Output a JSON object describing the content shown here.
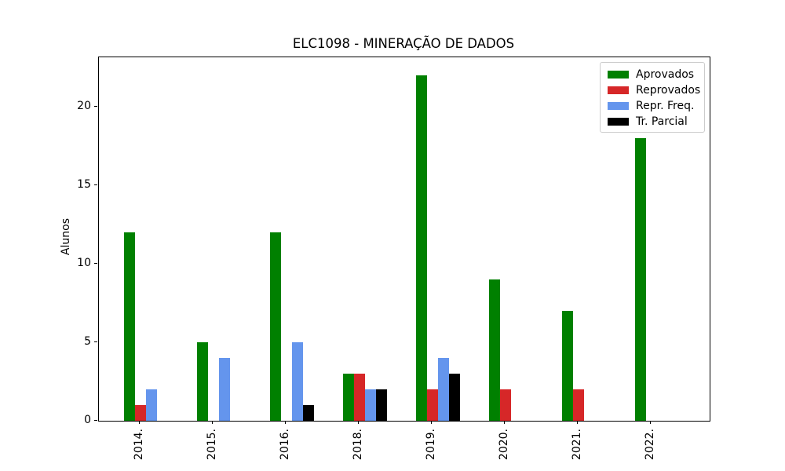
{
  "chart_data": {
    "type": "bar",
    "title": "ELC1098 - MINERAÇÃO DE DADOS",
    "xlabel": "",
    "ylabel": "Alunos",
    "categories": [
      "2014.",
      "2015.",
      "2016.",
      "2018.",
      "2019.",
      "2020.",
      "2021.",
      "2022."
    ],
    "series": [
      {
        "name": "Aprovados",
        "color": "#008000",
        "values": [
          12,
          5,
          12,
          3,
          22,
          9,
          7,
          18
        ]
      },
      {
        "name": "Reprovados",
        "color": "#d62728",
        "values": [
          1,
          0,
          0,
          3,
          2,
          2,
          2,
          0
        ]
      },
      {
        "name": "Repr. Freq.",
        "color": "#6495ed",
        "values": [
          2,
          4,
          5,
          2,
          4,
          0,
          0,
          0
        ]
      },
      {
        "name": "Tr. Parcial",
        "color": "#000000",
        "values": [
          0,
          0,
          1,
          2,
          3,
          0,
          0,
          0
        ]
      }
    ],
    "yticks": [
      "0",
      "5",
      "10",
      "15",
      "20"
    ],
    "ylim": [
      0,
      23.15
    ],
    "xtick_rotation": 90,
    "legend_position": "upper right",
    "grid": false,
    "background_color": "#ffffff",
    "spine_color": "#000000"
  }
}
